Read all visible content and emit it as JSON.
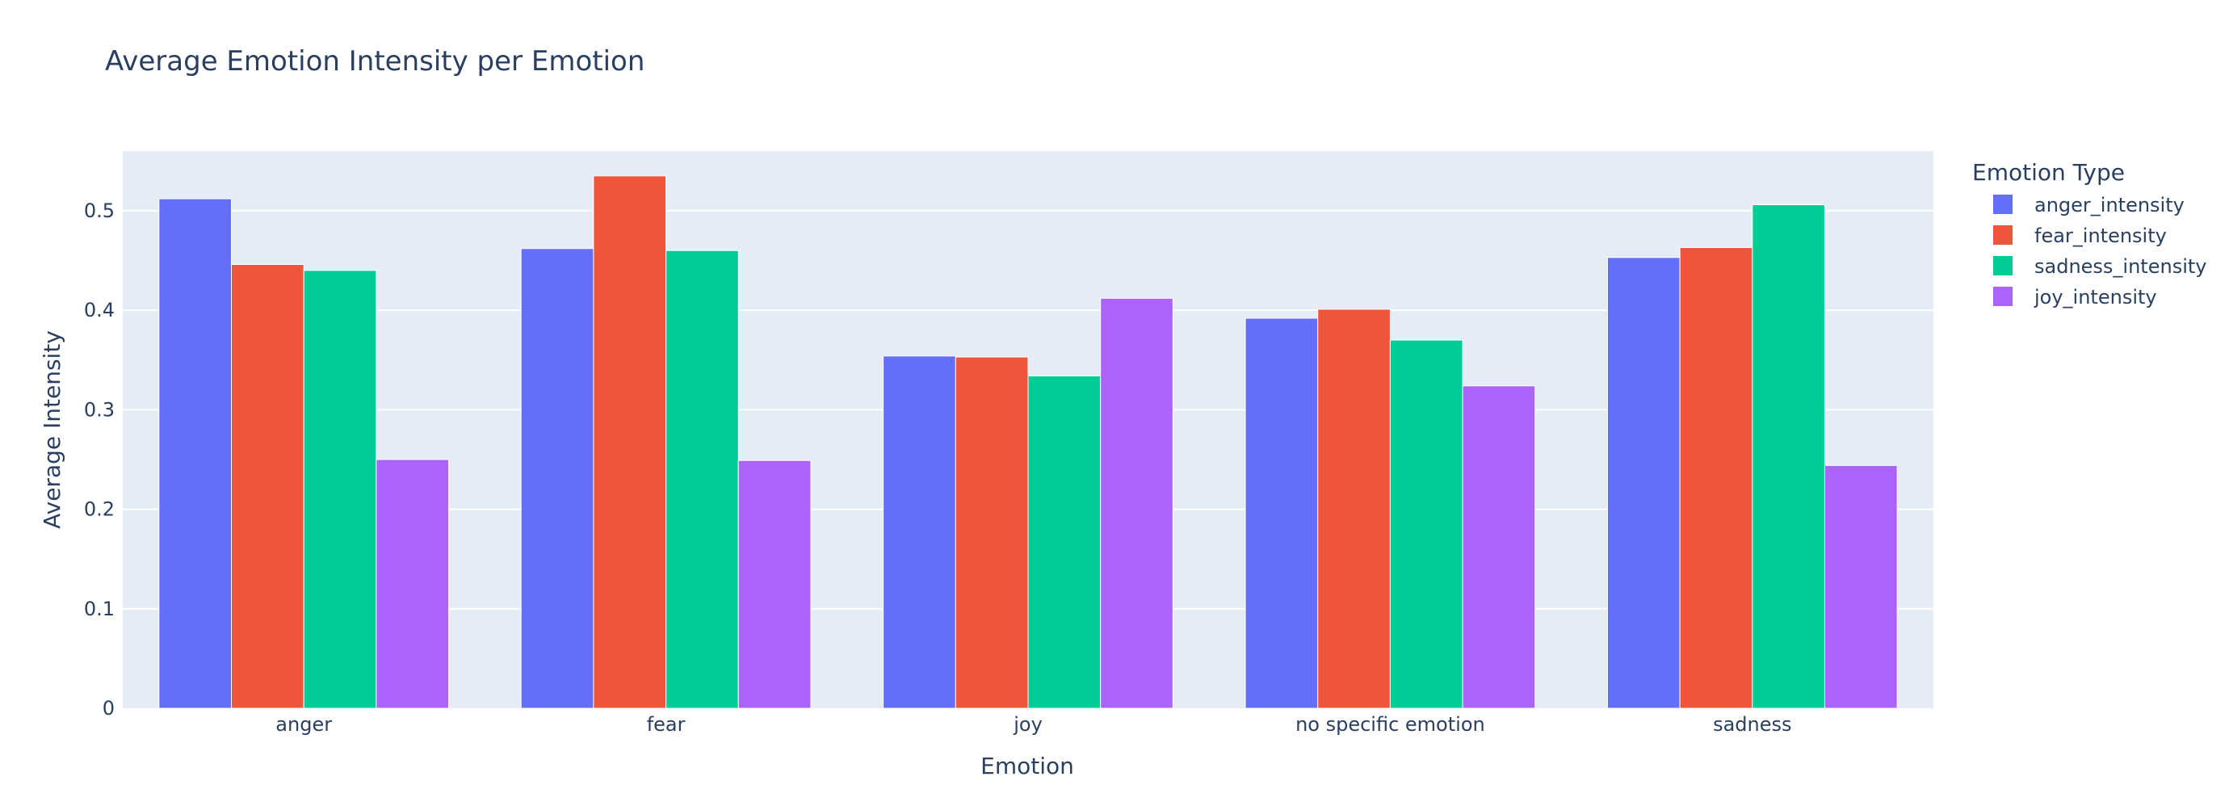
{
  "chart_data": {
    "type": "bar",
    "title": "Average Emotion Intensity per Emotion",
    "xlabel": "Emotion",
    "ylabel": "Average Intensity",
    "categories": [
      "anger",
      "fear",
      "joy",
      "no specific emotion",
      "sadness"
    ],
    "ylim": [
      0,
      0.56
    ],
    "yticks": [
      0,
      0.1,
      0.2,
      0.3,
      0.4,
      0.5
    ],
    "ytick_labels": [
      "0",
      "0.1",
      "0.2",
      "0.3",
      "0.4",
      "0.5"
    ],
    "grid": true,
    "legend": {
      "title": "Emotion Type",
      "placement": "right"
    },
    "series": [
      {
        "name": "anger_intensity",
        "color": "#636efa",
        "values": [
          0.512,
          0.462,
          0.354,
          0.392,
          0.453
        ]
      },
      {
        "name": "fear_intensity",
        "color": "#ef553b",
        "values": [
          0.446,
          0.535,
          0.353,
          0.401,
          0.463
        ]
      },
      {
        "name": "sadness_intensity",
        "color": "#00cc96",
        "values": [
          0.44,
          0.46,
          0.334,
          0.37,
          0.506
        ]
      },
      {
        "name": "joy_intensity",
        "color": "#ab63fa",
        "values": [
          0.25,
          0.249,
          0.412,
          0.324,
          0.244
        ]
      }
    ]
  }
}
